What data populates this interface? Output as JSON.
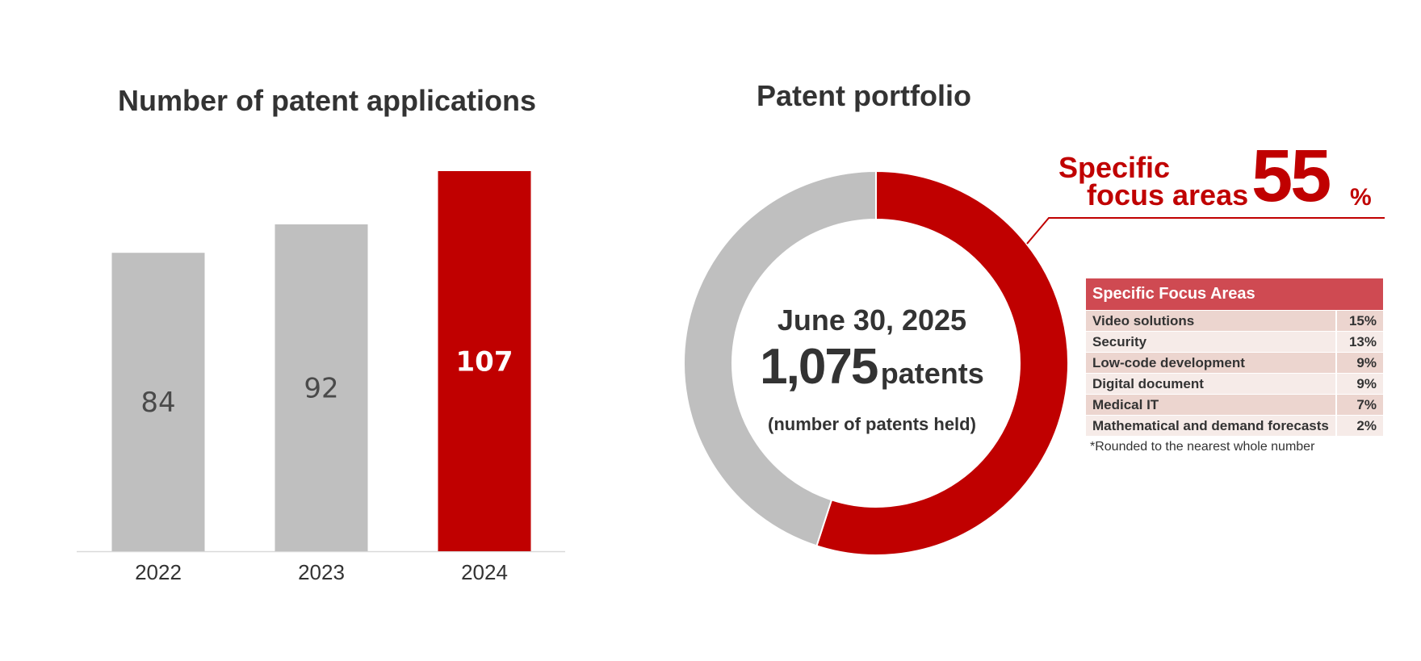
{
  "chart_data": [
    {
      "type": "bar",
      "title": "Number of patent applications",
      "categories": [
        "2022",
        "2023",
        "2024"
      ],
      "values": [
        84,
        92,
        107
      ],
      "value_labels": [
        "84",
        "92",
        "107"
      ],
      "highlight_category": "2024",
      "ylim": [
        0,
        107
      ],
      "grid": false,
      "colors": {
        "default": "#bfbfbf",
        "highlight": "#c00000"
      }
    },
    {
      "type": "pie",
      "title": "Patent portfolio",
      "slices": [
        {
          "label": "Specific focus areas",
          "value": 55
        },
        {
          "label": "",
          "value": 45
        }
      ],
      "colors": {
        "focus": "#c00000",
        "other": "#bfbfbf"
      },
      "center": {
        "date": "June 30, 2025",
        "count": "1,075",
        "unit": "patents",
        "note": "(number of patents held)"
      },
      "callout": {
        "label_line1": "Specific",
        "label_line2": "focus areas",
        "value": "55",
        "unit": "%"
      },
      "table": {
        "header": "Specific Focus Areas",
        "rows": [
          {
            "area": "Video solutions",
            "percent": "15%"
          },
          {
            "area": "Security",
            "percent": "13%"
          },
          {
            "area": "Low-code development",
            "percent": "9%"
          },
          {
            "area": "Digital document",
            "percent": "9%"
          },
          {
            "area": "Medical IT",
            "percent": "7%"
          },
          {
            "area": "Mathematical and demand forecasts",
            "percent": "2%"
          }
        ],
        "footnote": "*Rounded to the nearest whole number"
      }
    }
  ]
}
